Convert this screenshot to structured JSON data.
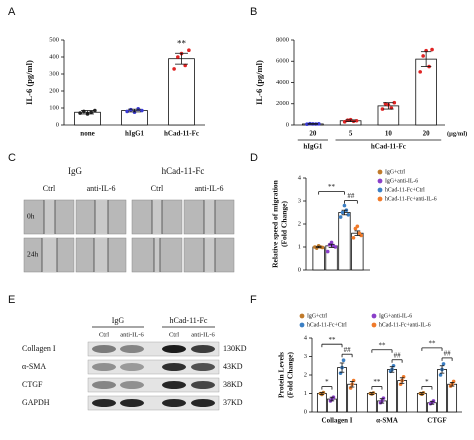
{
  "chart_data": [
    {
      "type": "bar",
      "label": "A",
      "ylabel": "IL-6 (pg/ml)",
      "categories": [
        "none",
        "hIgG1",
        "hCad-11-Fc"
      ],
      "values": [
        75,
        85,
        390
      ],
      "errors": [
        10,
        8,
        32
      ],
      "points": [
        [
          70,
          80,
          65,
          75,
          85
        ],
        [
          80,
          90,
          75,
          95,
          85
        ],
        [
          330,
          400,
          420,
          350,
          440
        ]
      ],
      "colors": [
        "#222222",
        "#3a3ad6",
        "#e02424"
      ],
      "ylim": [
        0,
        500
      ],
      "yticks": [
        0,
        100,
        200,
        300,
        400,
        500
      ],
      "annotations": [
        "**"
      ]
    },
    {
      "type": "bar",
      "label": "B",
      "ylabel": "IL-6 (pg/ml)",
      "categories": [
        "20",
        "5",
        "10",
        "20"
      ],
      "groups": [
        "hIgG1",
        "hCad-11-Fc"
      ],
      "unit": "(μg/ml)",
      "values": [
        100,
        400,
        1800,
        6200
      ],
      "errors": [
        30,
        80,
        300,
        700
      ],
      "points": [
        [
          80,
          120,
          100,
          90,
          110
        ],
        [
          300,
          450,
          500,
          350,
          400
        ],
        [
          1500,
          2000,
          1900,
          1600,
          2100
        ],
        [
          5000,
          6500,
          7000,
          5500,
          7100
        ]
      ],
      "colors": [
        "#3a3ad6",
        "#e02424",
        "#e02424",
        "#e02424"
      ],
      "ylim": [
        0,
        8000
      ],
      "yticks": [
        0,
        2000,
        4000,
        6000,
        8000
      ]
    },
    {
      "type": "bar",
      "label": "D",
      "ylabel": [
        "Relative speed of migration",
        "(Fold Change)"
      ],
      "series": [
        {
          "name": "IgG+ctrl",
          "color": "#c07a2a",
          "values": [
            1.0
          ],
          "errors": [
            0.03
          ],
          "points": [
            [
              1.0,
              0.95,
              1.05,
              1.0,
              0.98
            ]
          ]
        },
        {
          "name": "IgG+anti-IL-6",
          "color": "#8a3fc9",
          "values": [
            1.05
          ],
          "errors": [
            0.07
          ],
          "points": [
            [
              0.8,
              1.1,
              1.2,
              1.05,
              1.0
            ]
          ]
        },
        {
          "name": "hCad-11-Fc+Ctrl",
          "color": "#3b7fc4",
          "values": [
            2.5
          ],
          "errors": [
            0.1
          ],
          "points": [
            [
              2.3,
              2.5,
              2.8,
              2.6,
              2.4
            ]
          ]
        },
        {
          "name": "hCad-11-Fc+anti-IL-6",
          "color": "#f07a2a",
          "values": [
            1.6
          ],
          "errors": [
            0.1
          ],
          "points": [
            [
              1.4,
              1.8,
              1.9,
              1.6,
              1.5
            ]
          ]
        }
      ],
      "ylim": [
        0,
        4
      ],
      "yticks": [
        0,
        1,
        2,
        3,
        4
      ],
      "annotations": [
        "**",
        "##"
      ]
    },
    {
      "type": "bar",
      "label": "F",
      "ylabel": [
        "Protein Levels",
        "(Fold Change)"
      ],
      "categories": [
        "Collagen I",
        "α-SMA",
        "CTGF"
      ],
      "series": [
        {
          "name": "IgG+ctrl",
          "color": "#c07a2a",
          "values": [
            1.0,
            1.0,
            1.0
          ],
          "errors": [
            0.05,
            0.05,
            0.05
          ],
          "points": [
            [
              1.0,
              0.95,
              1.05
            ],
            [
              1.0,
              0.97,
              1.03
            ],
            [
              1.0,
              0.96,
              1.04
            ]
          ]
        },
        {
          "name": "IgG+anti-IL-6",
          "color": "#8a3fc9",
          "values": [
            0.7,
            0.6,
            0.5
          ],
          "errors": [
            0.1,
            0.12,
            0.08
          ],
          "points": [
            [
              0.6,
              0.7,
              0.8
            ],
            [
              0.5,
              0.6,
              0.75
            ],
            [
              0.45,
              0.5,
              0.6
            ]
          ]
        },
        {
          "name": "hCad-11-Fc+Ctrl",
          "color": "#3b7fc4",
          "values": [
            2.4,
            2.3,
            2.3
          ],
          "errors": [
            0.25,
            0.15,
            0.2
          ],
          "points": [
            [
              2.1,
              2.4,
              2.8
            ],
            [
              2.2,
              2.3,
              2.5
            ],
            [
              2.0,
              2.3,
              2.6
            ]
          ]
        },
        {
          "name": "hCad-11-Fc+anti-IL-6",
          "color": "#f07a2a",
          "values": [
            1.5,
            1.7,
            1.5
          ],
          "errors": [
            0.15,
            0.15,
            0.1
          ],
          "points": [
            [
              1.3,
              1.5,
              1.7
            ],
            [
              1.5,
              1.7,
              1.9
            ],
            [
              1.4,
              1.5,
              1.65
            ]
          ]
        }
      ],
      "ylim": [
        0,
        4
      ],
      "yticks": [
        0,
        1,
        2,
        3,
        4
      ],
      "annotations": [
        [
          "*",
          "**",
          "##"
        ],
        [
          "**",
          "**",
          "##"
        ],
        [
          "*",
          "**",
          "##"
        ]
      ]
    }
  ],
  "scratch_assay": {
    "label": "C",
    "groups": [
      "IgG",
      "hCad-11-Fc"
    ],
    "columns": [
      "Ctrl",
      "anti-IL-6",
      "Ctrl",
      "anti-IL-6"
    ],
    "rows": [
      "0h",
      "24h"
    ]
  },
  "western_blot": {
    "label": "E",
    "groups": [
      "IgG",
      "hCad-11-Fc"
    ],
    "columns": [
      "Ctrl",
      "anti-IL-6",
      "Ctrl",
      "anti-IL-6"
    ],
    "rows": [
      {
        "name": "Collagen I",
        "size": "130KD"
      },
      {
        "name": "α-SMA",
        "size": "43KD"
      },
      {
        "name": "CTGF",
        "size": "38KD"
      },
      {
        "name": "GAPDH",
        "size": "37KD"
      }
    ]
  }
}
